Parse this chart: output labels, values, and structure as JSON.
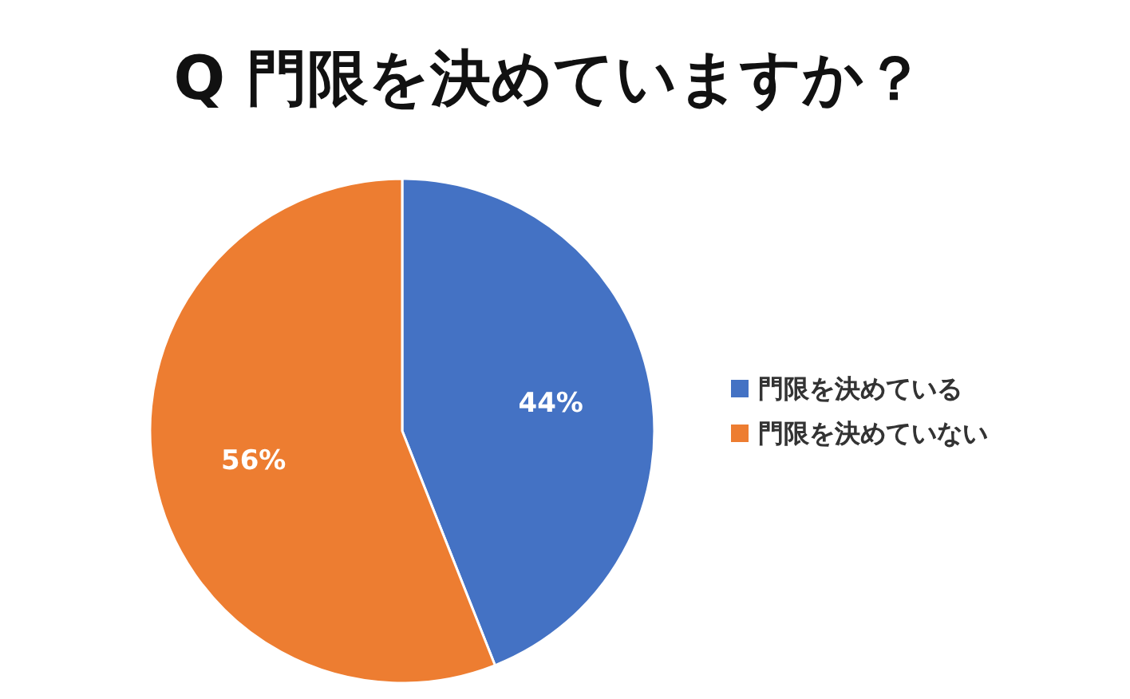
{
  "chart_data": {
    "type": "pie",
    "title": "Q 門限を決めていますか？",
    "categories": [
      "門限を決めている",
      "門限を決めていない"
    ],
    "values": [
      44,
      56
    ],
    "colors": [
      "#4472c4",
      "#ed7d31"
    ],
    "value_labels": [
      "44%",
      "56%"
    ],
    "legend": "right"
  }
}
